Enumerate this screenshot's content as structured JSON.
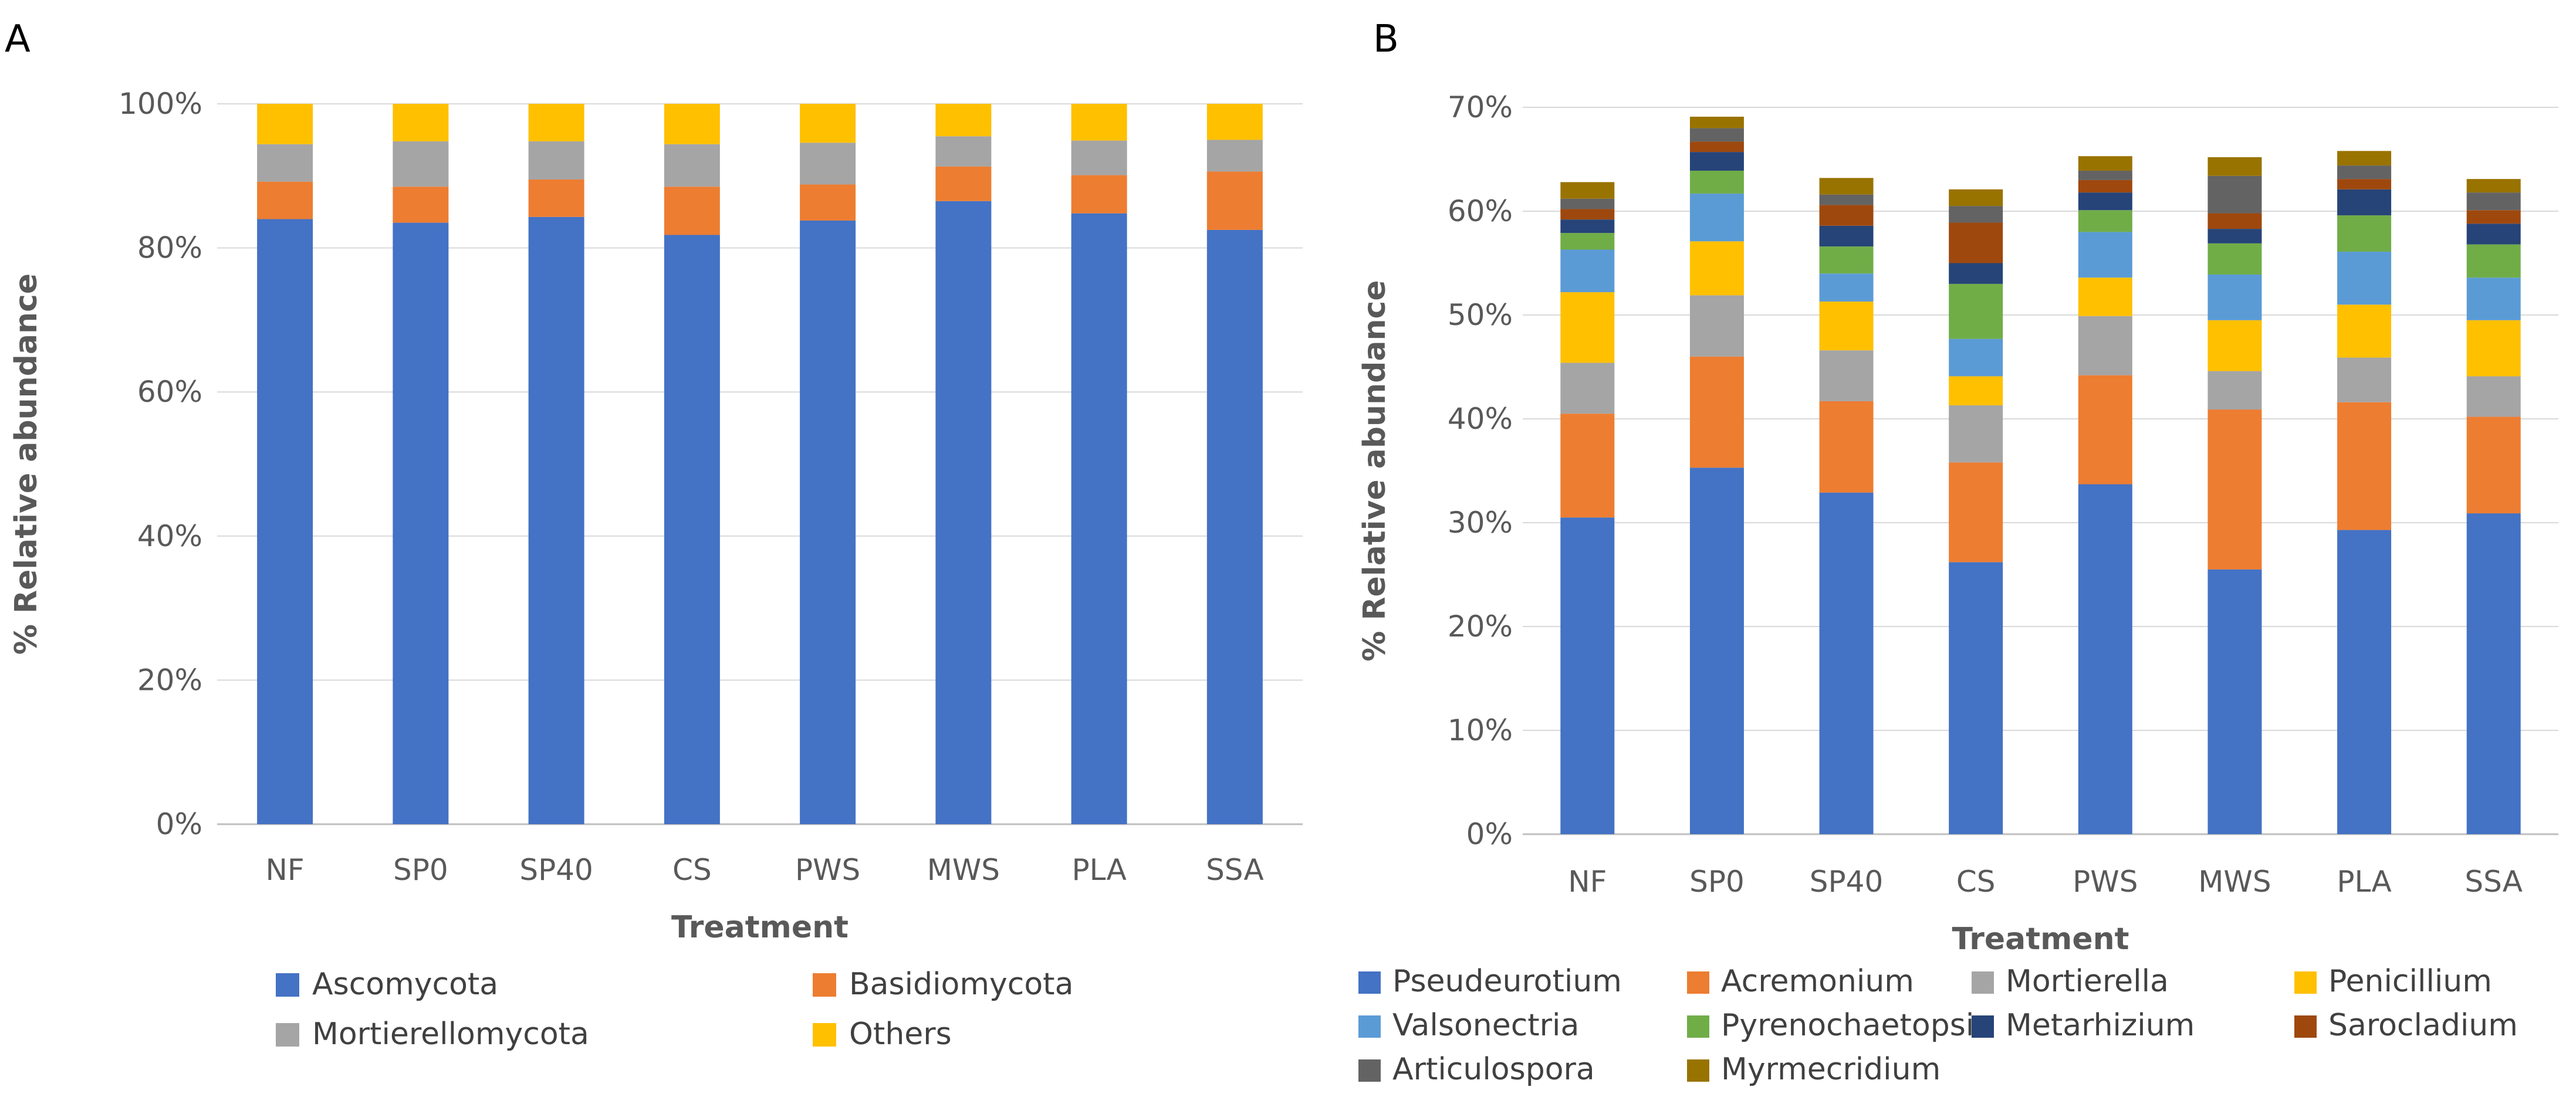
{
  "chart_data": [
    {
      "panel_label": "A",
      "type": "bar",
      "stacked": true,
      "title": "",
      "xlabel": "Treatment",
      "ylabel": "% Relative abundance",
      "categories": [
        "NF",
        "SP0",
        "SP40",
        "CS",
        "PWS",
        "MWS",
        "PLA",
        "SSA"
      ],
      "ylim": [
        0,
        100
      ],
      "ytick_labels": [
        "0%",
        "20%",
        "40%",
        "60%",
        "80%",
        "100%"
      ],
      "grid": true,
      "legend_position": "bottom",
      "series": [
        {
          "name": "Ascomycota",
          "color": "#4472C4",
          "values": [
            84,
            83.5,
            84.3,
            81.8,
            83.8,
            86.5,
            84.8,
            82.5
          ]
        },
        {
          "name": "Basidiomycota",
          "color": "#ED7D31",
          "values": [
            5.2,
            5,
            5.2,
            6.7,
            5,
            4.8,
            5.3,
            8.1
          ]
        },
        {
          "name": "Mortierellomycota",
          "color": "#A5A5A5",
          "values": [
            5.2,
            6.3,
            5.3,
            5.9,
            5.8,
            4.2,
            4.8,
            4.4
          ]
        },
        {
          "name": "Others",
          "color": "#FFC000",
          "values": [
            5.6,
            5.2,
            5.2,
            5.6,
            5.4,
            4.5,
            5.1,
            5
          ]
        }
      ]
    },
    {
      "panel_label": "B",
      "type": "bar",
      "stacked": true,
      "title": "",
      "xlabel": "Treatment",
      "ylabel": "% Relative abundance",
      "categories": [
        "NF",
        "SP0",
        "SP40",
        "CS",
        "PWS",
        "MWS",
        "PLA",
        "SSA"
      ],
      "ylim": [
        0,
        70
      ],
      "ytick_labels": [
        "0%",
        "10%",
        "20%",
        "30%",
        "40%",
        "50%",
        "60%",
        "70%"
      ],
      "grid": true,
      "legend_position": "bottom",
      "series": [
        {
          "name": "Pseudeurotium",
          "color": "#4472C4",
          "values": [
            30.5,
            35.3,
            32.9,
            26.2,
            33.7,
            25.5,
            29.3,
            30.9
          ]
        },
        {
          "name": "Acremonium",
          "color": "#ED7D31",
          "values": [
            10,
            10.7,
            8.8,
            9.6,
            10.5,
            15.4,
            12.3,
            9.3
          ]
        },
        {
          "name": "Mortierella",
          "color": "#A5A5A5",
          "values": [
            4.9,
            5.9,
            4.9,
            5.5,
            5.7,
            3.7,
            4.3,
            3.9
          ]
        },
        {
          "name": "Penicillium",
          "color": "#FFC000",
          "values": [
            6.8,
            5.2,
            4.7,
            2.8,
            3.7,
            4.9,
            5.1,
            5.4
          ]
        },
        {
          "name": "Valsonectria",
          "color": "#5B9BD5",
          "values": [
            4.1,
            4.6,
            2.7,
            3.6,
            4.4,
            4.4,
            5.1,
            4.1
          ]
        },
        {
          "name": "Pyrenochaetopsis",
          "color": "#70AD47",
          "values": [
            1.6,
            2.2,
            2.6,
            5.3,
            2.1,
            3,
            3.5,
            3.2
          ]
        },
        {
          "name": "Metarhizium",
          "color": "#264478",
          "values": [
            1.3,
            1.8,
            2,
            2,
            1.7,
            1.4,
            2.5,
            2
          ]
        },
        {
          "name": "Sarocladium",
          "color": "#9E480E",
          "values": [
            1,
            1,
            2,
            3.9,
            1.2,
            1.5,
            1,
            1.3
          ]
        },
        {
          "name": "Articulospora",
          "color": "#636363",
          "values": [
            1,
            1.3,
            1,
            1.6,
            0.9,
            3.6,
            1.3,
            1.7
          ]
        },
        {
          "name": "Myrmecridium",
          "color": "#997300",
          "values": [
            1.6,
            1.1,
            1.6,
            1.6,
            1.4,
            1.8,
            1.4,
            1.3
          ]
        }
      ]
    }
  ]
}
